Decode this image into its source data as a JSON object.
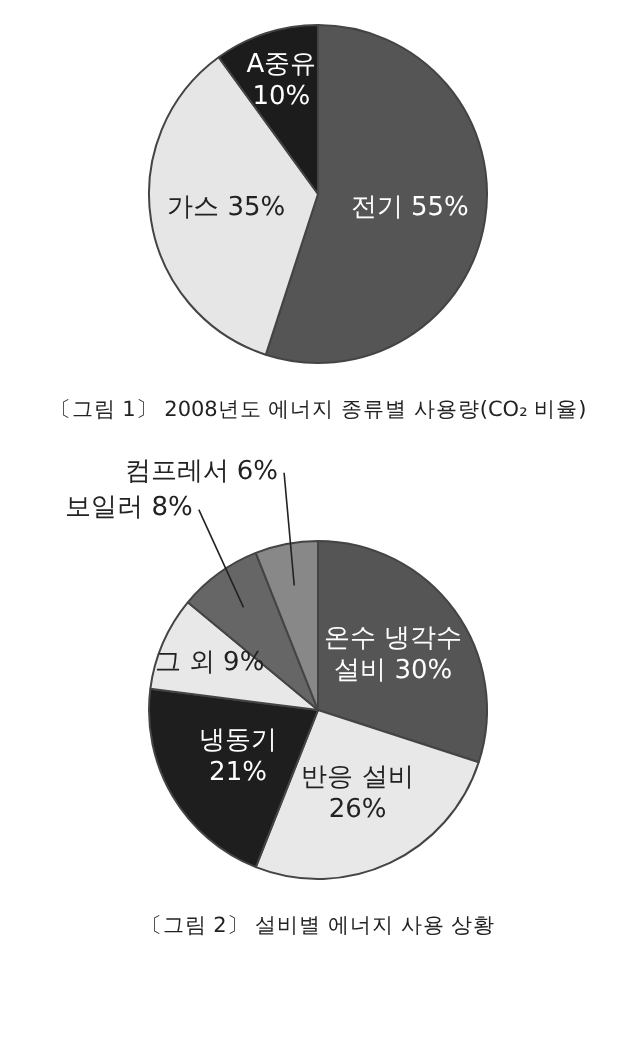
{
  "chart_data": [
    {
      "type": "pie",
      "title": "〔그림 1〕 2008년도 에너지 종류별 사용량(CO₂ 비율)",
      "legend": false,
      "categories": [
        "전기",
        "가스",
        "A중유"
      ],
      "values": [
        55,
        35,
        10
      ],
      "value_labels": [
        "55%",
        "35%",
        "10%"
      ],
      "colors": [
        "#555555",
        "#e6e6e6",
        "#1c1c1c"
      ]
    },
    {
      "type": "pie",
      "title": "〔그림 2〕 설비별 에너지 사용 상황",
      "legend": false,
      "categories": [
        "온수 냉각수 설비",
        "반응 설비",
        "냉동기",
        "그 외",
        "보일러",
        "컴프레서"
      ],
      "values": [
        30,
        26,
        21,
        9,
        8,
        6
      ],
      "value_labels": [
        "30%",
        "26%",
        "21%",
        "9%",
        "8%",
        "6%"
      ],
      "colors": [
        "#555555",
        "#e8e8e8",
        "#1e1e1e",
        "#e8e8e8",
        "#666666",
        "#888888"
      ]
    }
  ]
}
